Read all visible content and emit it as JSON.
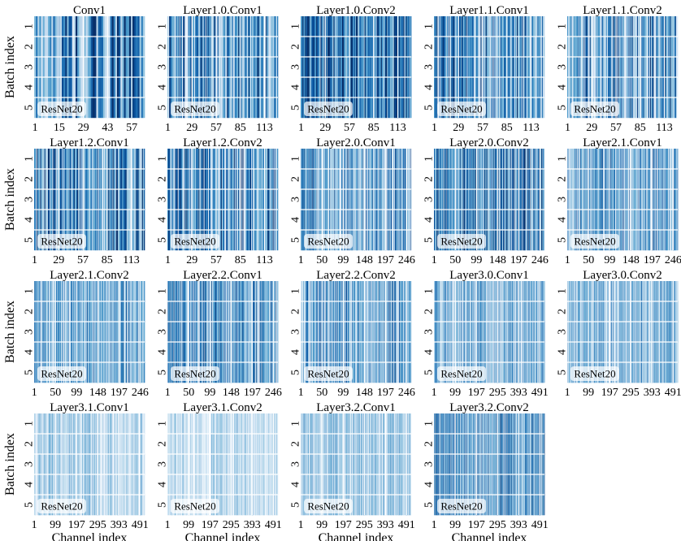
{
  "figure": {
    "ylabel": "Batch index",
    "xlabel": "Channel index",
    "badge": "ResNet20"
  },
  "chart_data": [
    {
      "type": "heatmap",
      "title": "Conv1",
      "model": "ResNet20",
      "channels": 64,
      "x_ticks": [
        "1",
        "15",
        "29",
        "43",
        "57"
      ],
      "y_ticks": [
        "1",
        "2",
        "3",
        "4",
        "5"
      ],
      "ylabel": "Batch index",
      "xlabel": "",
      "intensity": 0.62
    },
    {
      "type": "heatmap",
      "title": "Layer1.0.Conv1",
      "model": "ResNet20",
      "channels": 128,
      "x_ticks": [
        "1",
        "29",
        "57",
        "85",
        "113"
      ],
      "y_ticks": [
        "1",
        "2",
        "3",
        "4",
        "5"
      ],
      "ylabel": "",
      "xlabel": "",
      "intensity": 0.55
    },
    {
      "type": "heatmap",
      "title": "Layer1.0.Conv2",
      "model": "ResNet20",
      "channels": 128,
      "x_ticks": [
        "1",
        "29",
        "57",
        "85",
        "113"
      ],
      "y_ticks": [
        "1",
        "2",
        "3",
        "4",
        "5"
      ],
      "ylabel": "",
      "xlabel": "",
      "intensity": 0.72
    },
    {
      "type": "heatmap",
      "title": "Layer1.1.Conv1",
      "model": "ResNet20",
      "channels": 128,
      "x_ticks": [
        "1",
        "29",
        "57",
        "85",
        "113"
      ],
      "y_ticks": [
        "1",
        "2",
        "3",
        "4",
        "5"
      ],
      "ylabel": "",
      "xlabel": "",
      "intensity": 0.58
    },
    {
      "type": "heatmap",
      "title": "Layer1.1.Conv2",
      "model": "ResNet20",
      "channels": 128,
      "x_ticks": [
        "1",
        "29",
        "57",
        "85",
        "113"
      ],
      "y_ticks": [
        "1",
        "2",
        "3",
        "4",
        "5"
      ],
      "ylabel": "",
      "xlabel": "",
      "intensity": 0.52
    },
    {
      "type": "heatmap",
      "title": "Layer1.2.Conv1",
      "model": "ResNet20",
      "channels": 128,
      "x_ticks": [
        "1",
        "29",
        "57",
        "85",
        "113"
      ],
      "y_ticks": [
        "1",
        "2",
        "3",
        "4",
        "5"
      ],
      "ylabel": "Batch index",
      "xlabel": "",
      "intensity": 0.6
    },
    {
      "type": "heatmap",
      "title": "Layer1.2.Conv2",
      "model": "ResNet20",
      "channels": 128,
      "x_ticks": [
        "1",
        "29",
        "57",
        "85",
        "113"
      ],
      "y_ticks": [
        "1",
        "2",
        "3",
        "4",
        "5"
      ],
      "ylabel": "",
      "xlabel": "",
      "intensity": 0.55
    },
    {
      "type": "heatmap",
      "title": "Layer2.0.Conv1",
      "model": "ResNet20",
      "channels": 256,
      "x_ticks": [
        "1",
        "50",
        "99",
        "148",
        "197",
        "246"
      ],
      "y_ticks": [
        "1",
        "2",
        "3",
        "4",
        "5"
      ],
      "ylabel": "",
      "xlabel": "",
      "intensity": 0.48
    },
    {
      "type": "heatmap",
      "title": "Layer2.0.Conv2",
      "model": "ResNet20",
      "channels": 256,
      "x_ticks": [
        "1",
        "50",
        "99",
        "148",
        "197",
        "246"
      ],
      "y_ticks": [
        "1",
        "2",
        "3",
        "4",
        "5"
      ],
      "ylabel": "",
      "xlabel": "",
      "intensity": 0.6
    },
    {
      "type": "heatmap",
      "title": "Layer2.1.Conv1",
      "model": "ResNet20",
      "channels": 256,
      "x_ticks": [
        "1",
        "50",
        "99",
        "148",
        "197",
        "246"
      ],
      "y_ticks": [
        "1",
        "2",
        "3",
        "4",
        "5"
      ],
      "ylabel": "",
      "xlabel": "",
      "intensity": 0.45
    },
    {
      "type": "heatmap",
      "title": "Layer2.1.Conv2",
      "model": "ResNet20",
      "channels": 256,
      "x_ticks": [
        "1",
        "50",
        "99",
        "148",
        "197",
        "246"
      ],
      "y_ticks": [
        "1",
        "2",
        "3",
        "4",
        "5"
      ],
      "ylabel": "Batch index",
      "xlabel": "",
      "intensity": 0.45
    },
    {
      "type": "heatmap",
      "title": "Layer2.2.Conv1",
      "model": "ResNet20",
      "channels": 256,
      "x_ticks": [
        "1",
        "50",
        "99",
        "148",
        "197",
        "246"
      ],
      "y_ticks": [
        "1",
        "2",
        "3",
        "4",
        "5"
      ],
      "ylabel": "",
      "xlabel": "",
      "intensity": 0.5
    },
    {
      "type": "heatmap",
      "title": "Layer2.2.Conv2",
      "model": "ResNet20",
      "channels": 256,
      "x_ticks": [
        "1",
        "50",
        "99",
        "148",
        "197",
        "246"
      ],
      "y_ticks": [
        "1",
        "2",
        "3",
        "4",
        "5"
      ],
      "ylabel": "",
      "xlabel": "",
      "intensity": 0.46
    },
    {
      "type": "heatmap",
      "title": "Layer3.0.Conv1",
      "model": "ResNet20",
      "channels": 512,
      "x_ticks": [
        "1",
        "99",
        "197",
        "295",
        "393",
        "491"
      ],
      "y_ticks": [
        "1",
        "2",
        "3",
        "4",
        "5"
      ],
      "ylabel": "",
      "xlabel": "",
      "intensity": 0.38
    },
    {
      "type": "heatmap",
      "title": "Layer3.0.Conv2",
      "model": "ResNet20",
      "channels": 512,
      "x_ticks": [
        "1",
        "99",
        "197",
        "295",
        "393",
        "491"
      ],
      "y_ticks": [
        "1",
        "2",
        "3",
        "4",
        "5"
      ],
      "ylabel": "",
      "xlabel": "",
      "intensity": 0.36
    },
    {
      "type": "heatmap",
      "title": "Layer3.1.Conv1",
      "model": "ResNet20",
      "channels": 512,
      "x_ticks": [
        "1",
        "99",
        "197",
        "295",
        "393",
        "491"
      ],
      "y_ticks": [
        "1",
        "2",
        "3",
        "4",
        "5"
      ],
      "ylabel": "Batch index",
      "xlabel": "Channel index",
      "intensity": 0.22
    },
    {
      "type": "heatmap",
      "title": "Layer3.1.Conv2",
      "model": "ResNet20",
      "channels": 512,
      "x_ticks": [
        "1",
        "99",
        "197",
        "295",
        "393",
        "491"
      ],
      "y_ticks": [
        "1",
        "2",
        "3",
        "4",
        "5"
      ],
      "ylabel": "",
      "xlabel": "Channel index",
      "intensity": 0.15
    },
    {
      "type": "heatmap",
      "title": "Layer3.2.Conv1",
      "model": "ResNet20",
      "channels": 512,
      "x_ticks": [
        "1",
        "99",
        "197",
        "295",
        "393",
        "491"
      ],
      "y_ticks": [
        "1",
        "2",
        "3",
        "4",
        "5"
      ],
      "ylabel": "",
      "xlabel": "Channel index",
      "intensity": 0.28
    },
    {
      "type": "heatmap",
      "title": "Layer3.2.Conv2",
      "model": "ResNet20",
      "channels": 512,
      "x_ticks": [
        "1",
        "99",
        "197",
        "295",
        "393",
        "491"
      ],
      "y_ticks": [
        "1",
        "2",
        "3",
        "4",
        "5"
      ],
      "ylabel": "",
      "xlabel": "Channel index",
      "intensity": 0.52
    }
  ]
}
